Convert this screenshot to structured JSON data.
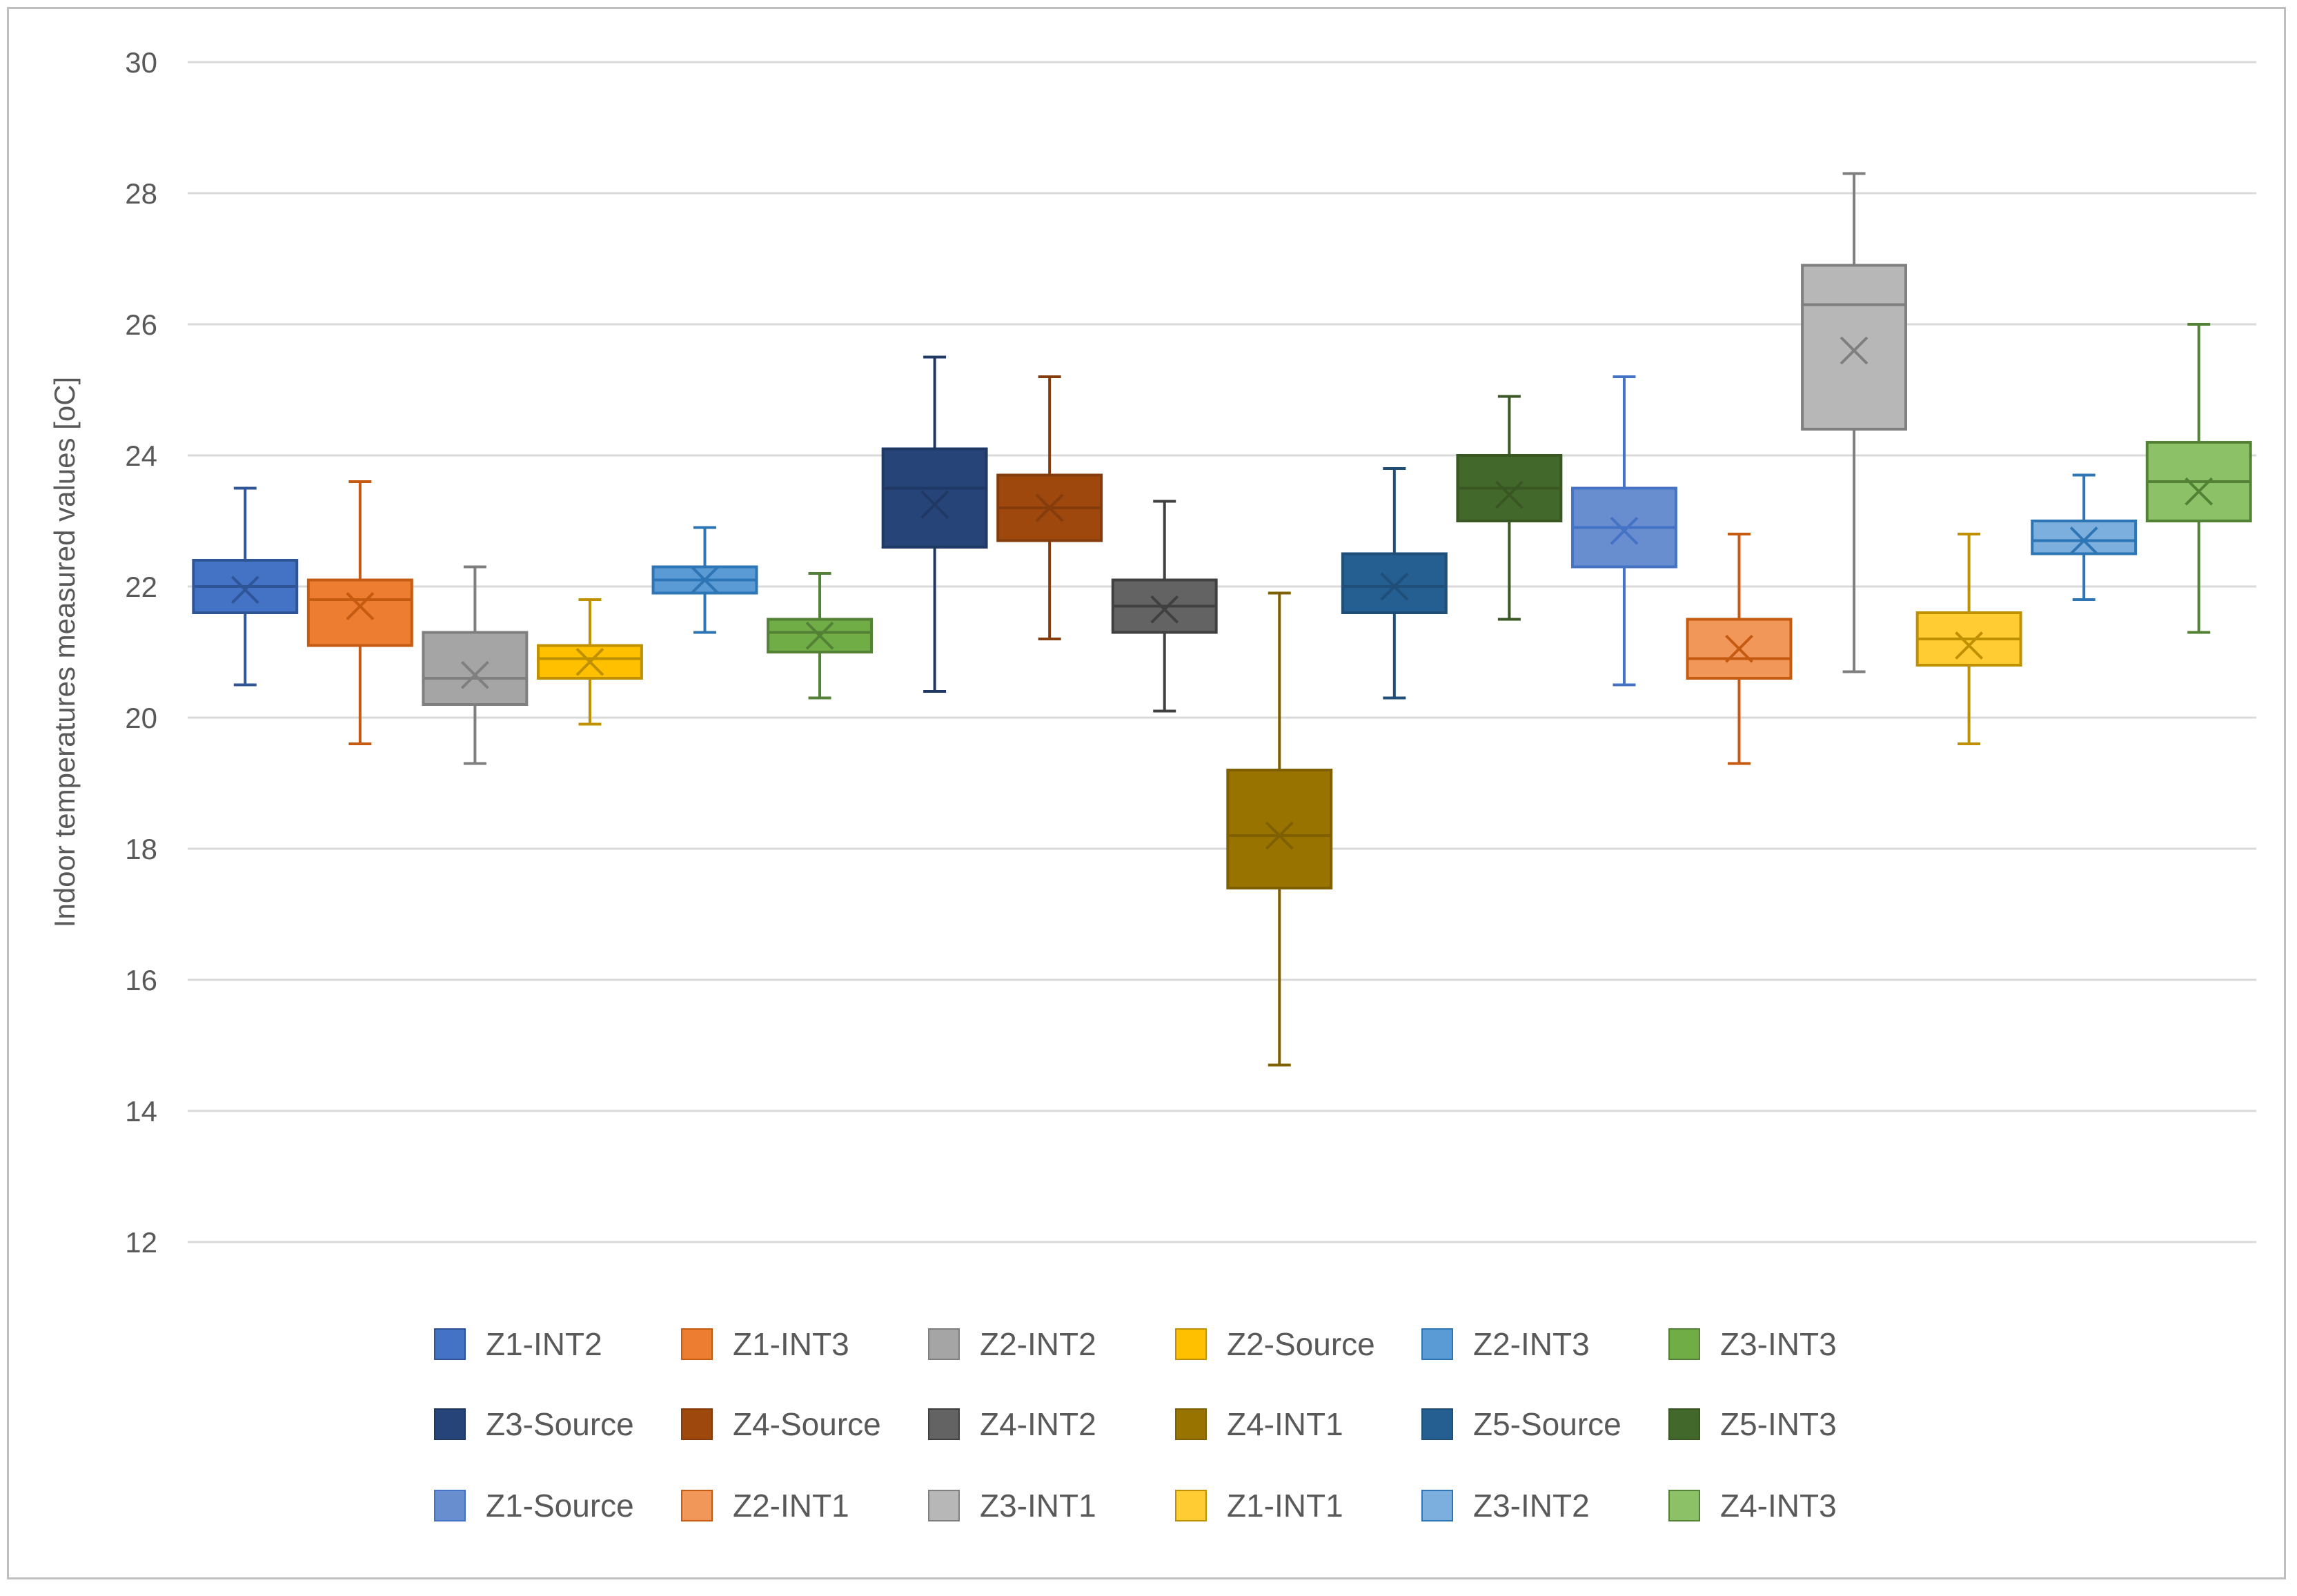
{
  "chart_data": {
    "type": "boxplot",
    "title": "",
    "xlabel": "",
    "ylabel": "Indoor temperatures measured values [oC]",
    "ylim": [
      12,
      30
    ],
    "yticks": [
      12,
      14,
      16,
      18,
      20,
      22,
      24,
      26,
      28,
      30
    ],
    "grid": true,
    "legend_position": "bottom",
    "series": [
      {
        "name": "Z1-INT2",
        "color": "#4472C4",
        "stroke": "#2F5597",
        "min": 20.5,
        "q1": 21.6,
        "median": 22.0,
        "q3": 22.4,
        "max": 23.5,
        "mean": 21.95
      },
      {
        "name": "Z1-INT3",
        "color": "#ED7D31",
        "stroke": "#C55A11",
        "min": 19.6,
        "q1": 21.1,
        "median": 21.8,
        "q3": 22.1,
        "max": 23.6,
        "mean": 21.7
      },
      {
        "name": "Z2-INT2",
        "color": "#A5A5A5",
        "stroke": "#7F7F7F",
        "min": 19.3,
        "q1": 20.2,
        "median": 20.6,
        "q3": 21.3,
        "max": 22.3,
        "mean": 20.65
      },
      {
        "name": "Z2-Source",
        "color": "#FFC000",
        "stroke": "#BF9000",
        "min": 19.9,
        "q1": 20.6,
        "median": 20.9,
        "q3": 21.1,
        "max": 21.8,
        "mean": 20.85
      },
      {
        "name": "Z2-INT3",
        "color": "#5B9BD5",
        "stroke": "#2E75B6",
        "min": 21.3,
        "q1": 21.9,
        "median": 22.1,
        "q3": 22.3,
        "max": 22.9,
        "mean": 22.1
      },
      {
        "name": "Z3-INT3",
        "color": "#70AD47",
        "stroke": "#538135",
        "min": 20.3,
        "q1": 21.0,
        "median": 21.3,
        "q3": 21.5,
        "max": 22.2,
        "mean": 21.25
      },
      {
        "name": "Z3-Source",
        "color": "#264478",
        "stroke": "#1F3864",
        "min": 20.4,
        "q1": 22.6,
        "median": 23.5,
        "q3": 24.1,
        "max": 25.5,
        "mean": 23.25
      },
      {
        "name": "Z4-Source",
        "color": "#9E480E",
        "stroke": "#843C0C",
        "min": 21.2,
        "q1": 22.7,
        "median": 23.2,
        "q3": 23.7,
        "max": 25.2,
        "mean": 23.2
      },
      {
        "name": "Z4-INT2",
        "color": "#636363",
        "stroke": "#404040",
        "min": 20.1,
        "q1": 21.3,
        "median": 21.7,
        "q3": 22.1,
        "max": 23.3,
        "mean": 21.65
      },
      {
        "name": "Z4-INT1",
        "color": "#997300",
        "stroke": "#7F6000",
        "min": 14.7,
        "q1": 17.4,
        "median": 18.2,
        "q3": 19.2,
        "max": 21.9,
        "mean": 18.2
      },
      {
        "name": "Z5-Source",
        "color": "#255E91",
        "stroke": "#1F4E79",
        "min": 20.3,
        "q1": 21.6,
        "median": 22.0,
        "q3": 22.5,
        "max": 23.8,
        "mean": 22.0
      },
      {
        "name": "Z5-INT3",
        "color": "#43682B",
        "stroke": "#385723",
        "min": 21.5,
        "q1": 23.0,
        "median": 23.5,
        "q3": 24.0,
        "max": 24.9,
        "mean": 23.4
      },
      {
        "name": "Z1-Source",
        "color": "#698ED0",
        "stroke": "#4472C4",
        "min": 20.5,
        "q1": 22.3,
        "median": 22.9,
        "q3": 23.5,
        "max": 25.2,
        "mean": 22.85
      },
      {
        "name": "Z2-INT1",
        "color": "#F1975A",
        "stroke": "#C55A11",
        "min": 19.3,
        "q1": 20.6,
        "median": 20.9,
        "q3": 21.5,
        "max": 22.8,
        "mean": 21.05
      },
      {
        "name": "Z3-INT1",
        "color": "#B7B7B7",
        "stroke": "#7F7F7F",
        "min": 20.7,
        "q1": 24.4,
        "median": 26.3,
        "q3": 26.9,
        "max": 28.3,
        "mean": 25.6
      },
      {
        "name": "Z1-INT1",
        "color": "#FFCD33",
        "stroke": "#BF9000",
        "min": 19.6,
        "q1": 20.8,
        "median": 21.2,
        "q3": 21.6,
        "max": 22.8,
        "mean": 21.1
      },
      {
        "name": "Z3-INT2",
        "color": "#7CAFDD",
        "stroke": "#2E75B6",
        "min": 21.8,
        "q1": 22.5,
        "median": 22.7,
        "q3": 23.0,
        "max": 23.7,
        "mean": 22.7
      },
      {
        "name": "Z4-INT3",
        "color": "#8CC168",
        "stroke": "#538135",
        "min": 21.3,
        "q1": 23.0,
        "median": 23.6,
        "q3": 24.2,
        "max": 26.0,
        "mean": 23.45
      }
    ]
  }
}
